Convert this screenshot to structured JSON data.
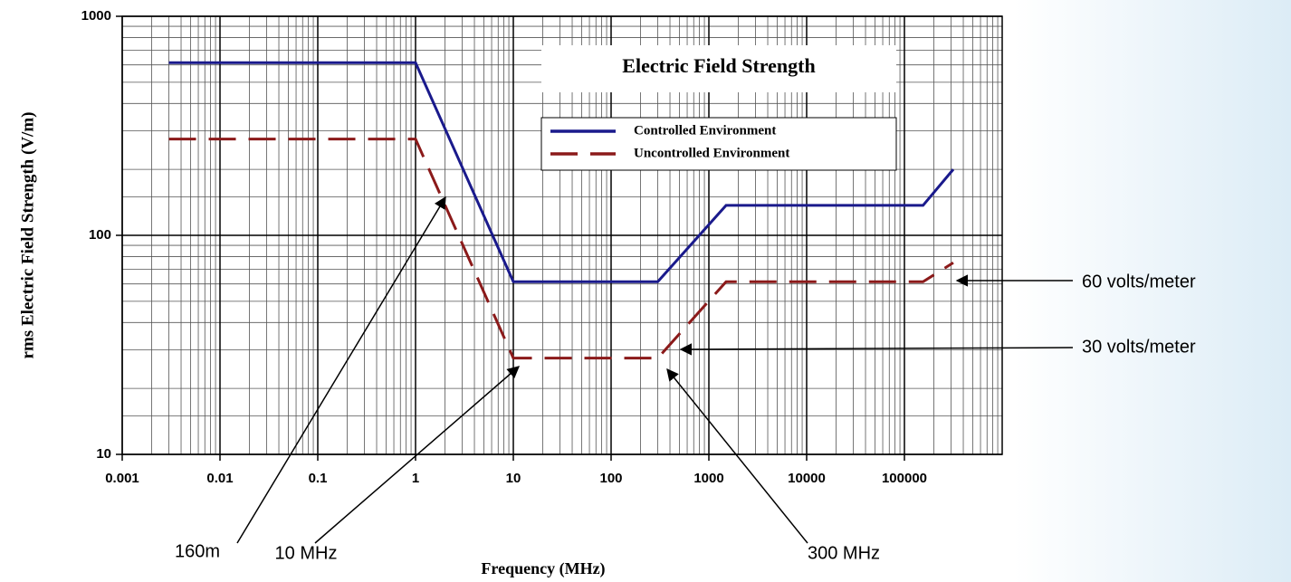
{
  "chart_data": {
    "type": "line",
    "title": "Electric Field Strength",
    "x_label": "Frequency (MHz)",
    "y_label": "rms Electric Field Strength (V/m)",
    "log_x": true,
    "log_y": true,
    "grid": true,
    "legend": "upper right",
    "x": [
      0.003,
      1,
      10,
      300,
      1500,
      155000,
      316000
    ],
    "series": [
      {
        "name": "Controlled Environment",
        "color": "#1a1a8c",
        "dash": false,
        "values": [
          614,
          614,
          61.4,
          61.4,
          137,
          137,
          200
        ]
      },
      {
        "name": "Uncontrolled Environment",
        "color": "#8b1a1a",
        "dash": true,
        "values": [
          275,
          275,
          27.5,
          27.5,
          61.4,
          61.4,
          75
        ]
      }
    ],
    "xlim": [
      0.001,
      1000000
    ],
    "ylim": [
      10,
      1000
    ],
    "xticks": [
      0.001,
      0.01,
      0.1,
      1,
      10,
      100,
      1000,
      10000,
      100000
    ],
    "yticks": [
      10,
      100,
      1000
    ],
    "annotations": [
      "160m",
      "10 MHz",
      "300 MHz",
      "60 volts/meter",
      "30 volts/meter"
    ]
  }
}
